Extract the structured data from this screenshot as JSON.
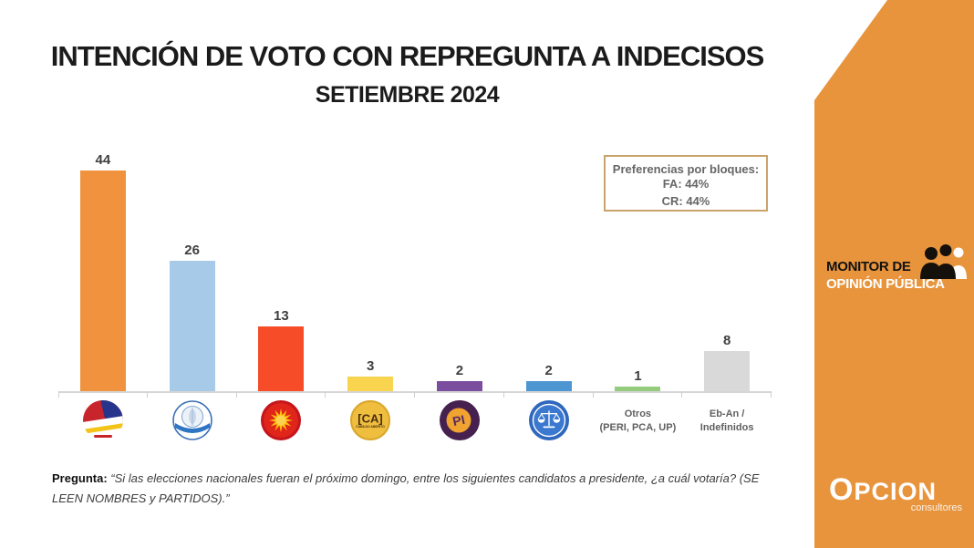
{
  "header": {
    "title": "INTENCIÓN DE VOTO CON REPREGUNTA A INDECISOS",
    "subtitle": "SETIEMBRE 2024"
  },
  "legend_box": {
    "title": "Preferencias por bloques:",
    "lines": [
      "FA: 44%",
      "CR: 44%"
    ],
    "border_color": "#c9a36b"
  },
  "chart_data": {
    "type": "bar",
    "title": "INTENCIÓN DE VOTO CON REPREGUNTA A INDECISOS",
    "subtitle": "SETIEMBRE 2024",
    "categories": [
      "Frente Amplio",
      "Partido Nacional",
      "Partido Colorado",
      "Cabildo Abierto",
      "Partido Independiente",
      "Identidad Soberana",
      "Otros (PERI, PCA, UP)",
      "Eb-An / Indefinidos"
    ],
    "values": [
      44,
      26,
      13,
      3,
      2,
      2,
      1,
      8
    ],
    "colors": [
      "#F0923E",
      "#A7CAE8",
      "#F64C28",
      "#F8D44F",
      "#7A4D9F",
      "#4E96D2",
      "#94CB7D",
      "#D9D9D9"
    ],
    "x_labels": [
      [
        "",
        ""
      ],
      [
        "",
        ""
      ],
      [
        "",
        ""
      ],
      [
        "",
        ""
      ],
      [
        "",
        ""
      ],
      [
        "",
        ""
      ],
      [
        "Otros",
        "(PERI, PCA, UP)"
      ],
      [
        "Eb-An /",
        "Indefinidos"
      ]
    ],
    "icons": [
      "frente-amplio-logo",
      "partido-nacional-logo",
      "partido-colorado-logo",
      "cabildo-abierto-logo",
      "partido-independiente-logo",
      "identidad-soberana-logo",
      "",
      ""
    ],
    "xlabel": "",
    "ylabel": "",
    "ylim": [
      0,
      48
    ],
    "grid": false,
    "legend": "none",
    "value_labels": true
  },
  "question": {
    "label": "Pregunta:",
    "text": "“Si las elecciones nacionales fueran el próximo domingo, entre los siguientes candidatos a presidente, ¿a cuál votaría? (SE LEEN NOMBRES y PARTIDOS).”"
  },
  "side_panel": {
    "bg_color": "#e8943c",
    "monitor_line1": "MONITOR DE",
    "monitor_line2": "OPINIÓN PÚBLICA",
    "brand_name": "OPCION",
    "brand_tagline": "consultores"
  }
}
